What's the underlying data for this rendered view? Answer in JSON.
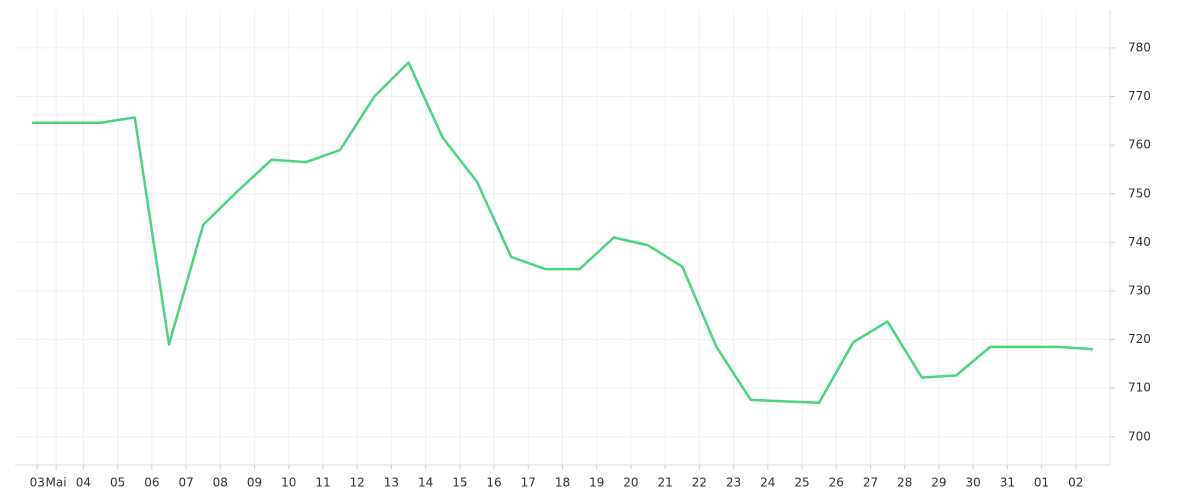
{
  "chart_data": {
    "type": "line",
    "x": [
      0,
      1,
      2,
      3,
      4,
      5,
      6,
      7,
      8,
      9,
      10,
      11,
      12,
      13,
      14,
      15,
      16,
      17,
      18,
      19,
      20,
      21,
      22,
      23,
      24,
      25,
      26,
      27,
      28,
      29,
      30,
      31
    ],
    "series": [
      {
        "color": "#4cd47f",
        "values": [
          764.6,
          764.6,
          764.6,
          765.7,
          719,
          743.6,
          750.5,
          757,
          756.5,
          759,
          770,
          777,
          761.5,
          752.5,
          737,
          734.5,
          734.5,
          741,
          739.4,
          735,
          718.5,
          707.6,
          707.3,
          707,
          719.5,
          723.7,
          712.2,
          712.6,
          718.5,
          718.5,
          718.5,
          718
        ]
      }
    ],
    "xlim": [
      -0.5,
      31.5
    ],
    "xticks": [
      {
        "value": 0.15,
        "label": "03"
      },
      {
        "value": 0.7,
        "label": "Mai"
      },
      {
        "value": 1.5,
        "label": "04"
      },
      {
        "value": 2.5,
        "label": "05"
      },
      {
        "value": 3.5,
        "label": "06"
      },
      {
        "value": 4.5,
        "label": "07"
      },
      {
        "value": 5.5,
        "label": "08"
      },
      {
        "value": 6.5,
        "label": "09"
      },
      {
        "value": 7.5,
        "label": "10"
      },
      {
        "value": 8.5,
        "label": "11"
      },
      {
        "value": 9.5,
        "label": "12"
      },
      {
        "value": 10.5,
        "label": "13"
      },
      {
        "value": 11.5,
        "label": "14"
      },
      {
        "value": 12.5,
        "label": "15"
      },
      {
        "value": 13.5,
        "label": "16"
      },
      {
        "value": 14.5,
        "label": "17"
      },
      {
        "value": 15.5,
        "label": "18"
      },
      {
        "value": 16.5,
        "label": "19"
      },
      {
        "value": 17.5,
        "label": "20"
      },
      {
        "value": 18.5,
        "label": "21"
      },
      {
        "value": 19.5,
        "label": "22"
      },
      {
        "value": 20.5,
        "label": "23"
      },
      {
        "value": 21.5,
        "label": "24"
      },
      {
        "value": 22.5,
        "label": "25"
      },
      {
        "value": 23.5,
        "label": "26"
      },
      {
        "value": 24.5,
        "label": "27"
      },
      {
        "value": 25.5,
        "label": "28"
      },
      {
        "value": 26.5,
        "label": "29"
      },
      {
        "value": 27.5,
        "label": "30"
      },
      {
        "value": 28.5,
        "label": "31"
      },
      {
        "value": 29.5,
        "label": "01"
      },
      {
        "value": 30.5,
        "label": "02"
      }
    ],
    "ylim": [
      694.2,
      787.8
    ],
    "yticks": [
      700,
      710,
      720,
      730,
      740,
      750,
      760,
      770,
      780
    ],
    "grid": true
  }
}
